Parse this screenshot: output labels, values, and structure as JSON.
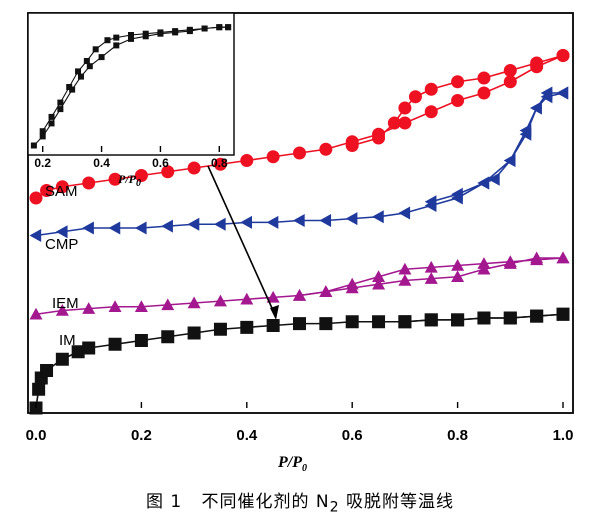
{
  "caption": {
    "figure_label": "图 1",
    "title": "不同催化剂的 N",
    "sub": "2",
    "title_tail": " 吸脱附等温线"
  },
  "chart_data": [
    {
      "type": "line",
      "xlabel": "P/P",
      "xlabel_sub": "0",
      "ylabel": "",
      "xlim": [
        0.0,
        1.0
      ],
      "ylim": [
        0,
        100
      ],
      "y_ticks_shown": false,
      "x_ticks": [
        "0.0",
        "0.2",
        "0.4",
        "0.6",
        "0.8",
        "1.0"
      ],
      "series": [
        {
          "name": "SAM",
          "color": "#ee1122",
          "marker": "circle",
          "adsorption": [
            [
              0.0,
              56
            ],
            [
              0.02,
              58
            ],
            [
              0.05,
              59
            ],
            [
              0.1,
              60
            ],
            [
              0.15,
              61
            ],
            [
              0.2,
              62
            ],
            [
              0.25,
              63
            ],
            [
              0.3,
              64
            ],
            [
              0.35,
              65
            ],
            [
              0.4,
              66
            ],
            [
              0.45,
              67
            ],
            [
              0.5,
              68
            ],
            [
              0.55,
              69
            ],
            [
              0.6,
              71
            ],
            [
              0.65,
              73
            ],
            [
              0.7,
              76
            ],
            [
              0.75,
              79
            ],
            [
              0.8,
              82
            ],
            [
              0.85,
              84
            ],
            [
              0.9,
              87
            ],
            [
              0.95,
              91
            ],
            [
              1.0,
              94
            ]
          ],
          "desorption": [
            [
              1.0,
              94
            ],
            [
              0.95,
              92
            ],
            [
              0.9,
              90
            ],
            [
              0.85,
              88
            ],
            [
              0.8,
              87
            ],
            [
              0.75,
              85
            ],
            [
              0.72,
              83
            ],
            [
              0.7,
              80
            ],
            [
              0.68,
              76
            ],
            [
              0.65,
              72
            ],
            [
              0.6,
              70
            ]
          ]
        },
        {
          "name": "CMP",
          "color": "#1f3a9c",
          "marker": "triangle-left",
          "adsorption": [
            [
              0.0,
              46
            ],
            [
              0.05,
              47
            ],
            [
              0.1,
              48
            ],
            [
              0.15,
              48
            ],
            [
              0.2,
              48
            ],
            [
              0.25,
              48.5
            ],
            [
              0.3,
              49
            ],
            [
              0.35,
              49
            ],
            [
              0.4,
              49.5
            ],
            [
              0.45,
              49.5
            ],
            [
              0.5,
              50
            ],
            [
              0.55,
              50
            ],
            [
              0.6,
              50.5
            ],
            [
              0.65,
              51
            ],
            [
              0.7,
              52
            ],
            [
              0.75,
              54
            ],
            [
              0.8,
              56
            ],
            [
              0.85,
              60
            ],
            [
              0.9,
              66
            ],
            [
              0.93,
              73
            ],
            [
              0.95,
              80
            ],
            [
              0.97,
              84
            ],
            [
              1.0,
              84
            ]
          ],
          "desorption": [
            [
              1.0,
              84
            ],
            [
              0.97,
              83
            ],
            [
              0.95,
              80
            ],
            [
              0.93,
              74
            ],
            [
              0.9,
              66
            ],
            [
              0.87,
              61
            ],
            [
              0.85,
              60
            ],
            [
              0.8,
              57
            ],
            [
              0.75,
              55
            ]
          ]
        },
        {
          "name": "IEM",
          "color": "#a3188f",
          "marker": "triangle-up",
          "adsorption": [
            [
              0.0,
              25
            ],
            [
              0.05,
              26
            ],
            [
              0.1,
              26.5
            ],
            [
              0.15,
              27
            ],
            [
              0.2,
              27
            ],
            [
              0.25,
              27.5
            ],
            [
              0.3,
              28
            ],
            [
              0.35,
              28.5
            ],
            [
              0.4,
              29
            ],
            [
              0.45,
              29.5
            ],
            [
              0.5,
              30
            ],
            [
              0.55,
              31
            ],
            [
              0.6,
              32
            ],
            [
              0.65,
              33
            ],
            [
              0.7,
              34
            ],
            [
              0.75,
              34.5
            ],
            [
              0.8,
              35
            ],
            [
              0.85,
              37
            ],
            [
              0.9,
              38.5
            ],
            [
              0.95,
              40
            ],
            [
              1.0,
              40
            ]
          ],
          "desorption": [
            [
              1.0,
              40
            ],
            [
              0.95,
              39.5
            ],
            [
              0.9,
              39
            ],
            [
              0.85,
              38.5
            ],
            [
              0.8,
              38
            ],
            [
              0.75,
              37.5
            ],
            [
              0.7,
              37
            ],
            [
              0.65,
              35
            ],
            [
              0.6,
              33
            ],
            [
              0.55,
              31
            ],
            [
              0.5,
              30
            ]
          ]
        },
        {
          "name": "IM",
          "color": "#111111",
          "marker": "square",
          "adsorption": [
            [
              0.0,
              0
            ],
            [
              0.005,
              5
            ],
            [
              0.01,
              8
            ],
            [
              0.02,
              10
            ],
            [
              0.05,
              13
            ],
            [
              0.08,
              15
            ],
            [
              0.1,
              16
            ],
            [
              0.15,
              17
            ],
            [
              0.2,
              18
            ],
            [
              0.25,
              19
            ],
            [
              0.3,
              20
            ],
            [
              0.35,
              21
            ],
            [
              0.4,
              21.5
            ],
            [
              0.45,
              22
            ],
            [
              0.5,
              22.5
            ],
            [
              0.55,
              22.5
            ],
            [
              0.6,
              23
            ],
            [
              0.65,
              23
            ],
            [
              0.7,
              23
            ],
            [
              0.75,
              23.5
            ],
            [
              0.8,
              23.5
            ],
            [
              0.85,
              24
            ],
            [
              0.9,
              24
            ],
            [
              0.95,
              24.5
            ],
            [
              1.0,
              25
            ]
          ],
          "desorption": [
            [
              1.0,
              25
            ],
            [
              0.95,
              24.5
            ],
            [
              0.9,
              24
            ],
            [
              0.85,
              24
            ],
            [
              0.8,
              23.5
            ],
            [
              0.75,
              23.5
            ],
            [
              0.7,
              23
            ]
          ]
        }
      ]
    },
    {
      "type": "line",
      "xlabel": "P/P",
      "xlabel_sub": "0",
      "xlim": [
        0.15,
        0.85
      ],
      "ylim": [
        0,
        100
      ],
      "x_ticks": [
        "0.2",
        "0.4",
        "0.6",
        "0.8"
      ],
      "series": [
        {
          "name": "",
          "color": "#111111",
          "marker": "square",
          "adsorption": [
            [
              0.17,
              5
            ],
            [
              0.2,
              12
            ],
            [
              0.23,
              22
            ],
            [
              0.26,
              33
            ],
            [
              0.3,
              48
            ],
            [
              0.33,
              58
            ],
            [
              0.36,
              66
            ],
            [
              0.4,
              73
            ],
            [
              0.45,
              82
            ],
            [
              0.5,
              87
            ],
            [
              0.55,
              89
            ],
            [
              0.6,
              91
            ],
            [
              0.65,
              92
            ],
            [
              0.7,
              93
            ],
            [
              0.75,
              95
            ],
            [
              0.8,
              96
            ],
            [
              0.83,
              96
            ]
          ],
          "desorption": [
            [
              0.83,
              96
            ],
            [
              0.8,
              96
            ],
            [
              0.75,
              95
            ],
            [
              0.7,
              94
            ],
            [
              0.65,
              93
            ],
            [
              0.6,
              92
            ],
            [
              0.55,
              91
            ],
            [
              0.5,
              90
            ],
            [
              0.45,
              88
            ],
            [
              0.42,
              86
            ],
            [
              0.38,
              79
            ],
            [
              0.35,
              70
            ],
            [
              0.32,
              62
            ],
            [
              0.29,
              50
            ],
            [
              0.26,
              38
            ],
            [
              0.23,
              27
            ],
            [
              0.2,
              16
            ]
          ]
        }
      ]
    }
  ]
}
